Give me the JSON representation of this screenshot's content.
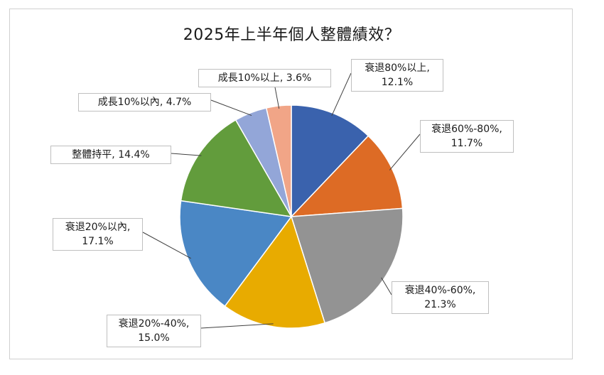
{
  "chart_data": {
    "type": "pie",
    "title": "2025年上半年個人整體績效？",
    "slices": [
      {
        "name": "衰退80%以上",
        "value": 12.1,
        "value_label": "12.1%",
        "color": "#3a62ad"
      },
      {
        "name": "衰退60%-80%",
        "value": 11.7,
        "value_label": "11.7%",
        "color": "#dd6b25"
      },
      {
        "name": "衰退40%-60%",
        "value": 21.3,
        "value_label": "21.3%",
        "color": "#939393"
      },
      {
        "name": "衰退20%-40%",
        "value": 15.0,
        "value_label": "15.0%",
        "color": "#e8ab00"
      },
      {
        "name": "衰退20%以內",
        "value": 17.1,
        "value_label": "17.1%",
        "color": "#4a87c5"
      },
      {
        "name": "整體持平",
        "value": 14.4,
        "value_label": "14.4%",
        "color": "#629c3c"
      },
      {
        "name": "成長10%以內",
        "value": 4.7,
        "value_label": "4.7%",
        "color": "#93a6d8"
      },
      {
        "name": "成長10%以上",
        "value": 3.6,
        "value_label": "3.6%",
        "color": "#f1a587"
      }
    ],
    "start_angle_deg": 0,
    "direction": "clockwise",
    "legend": "none",
    "data_labels": "callout"
  }
}
